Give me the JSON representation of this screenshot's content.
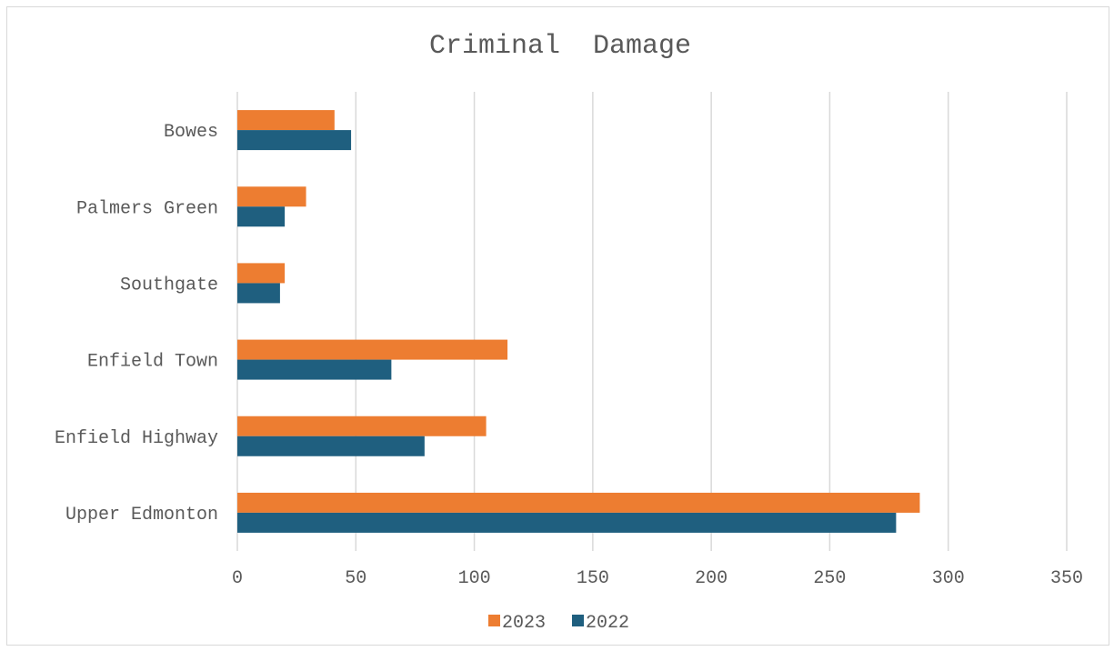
{
  "chart_data": {
    "type": "bar",
    "orientation": "horizontal",
    "title": "Criminal  Damage",
    "categories": [
      "Bowes",
      "Palmers Green",
      "Southgate",
      "Enfield Town",
      "Enfield Highway",
      "Upper Edmonton"
    ],
    "series": [
      {
        "name": "2023",
        "color": "#ed7d31",
        "values": [
          41,
          29,
          20,
          114,
          105,
          288
        ]
      },
      {
        "name": "2022",
        "color": "#1f5f7f",
        "values": [
          48,
          20,
          18,
          65,
          79,
          278
        ]
      }
    ],
    "xlim": [
      0,
      350
    ],
    "xticks": [
      0,
      50,
      100,
      150,
      200,
      250,
      300,
      350
    ],
    "grid": "vertical",
    "legend": "bottom"
  },
  "colors": {
    "gridline": "#d9d9d9",
    "text": "#595959"
  }
}
